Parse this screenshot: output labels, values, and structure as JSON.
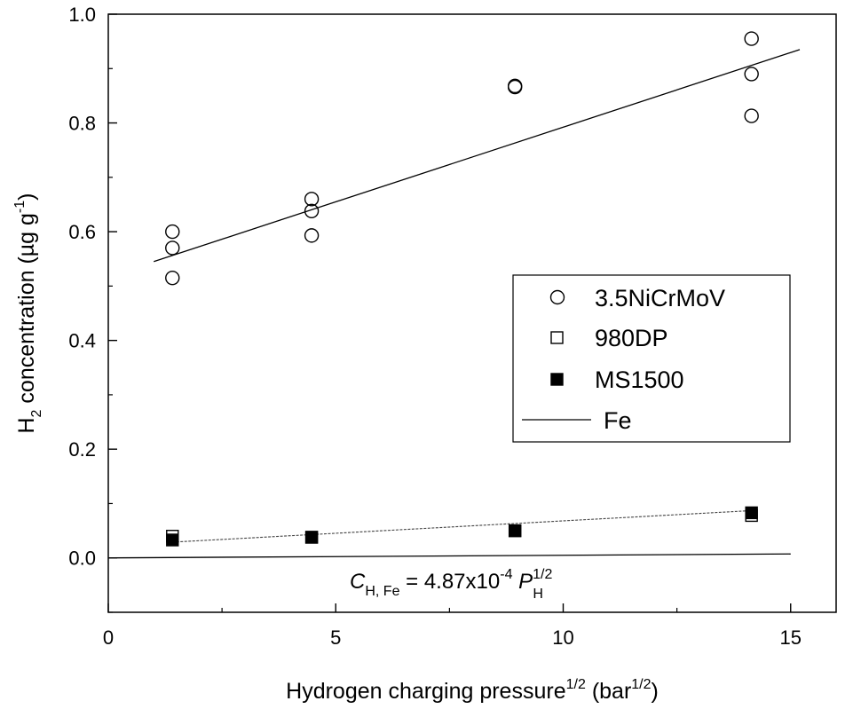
{
  "chart_data": {
    "type": "scatter",
    "title": "",
    "xlabel": {
      "main": "Hydrogen charging pressure",
      "main_sup": "1/2",
      "unit_prefix": "(bar",
      "unit_sup": "1/2",
      "unit_suffix": ")"
    },
    "ylabel": {
      "h": "H",
      "sub": "2",
      "main": " concentration (µg g",
      "sup": "-1",
      "suffix": ")"
    },
    "xlim": [
      0,
      16
    ],
    "ylim": [
      -0.1,
      1.0
    ],
    "x_ticks": [
      0,
      5,
      10,
      15
    ],
    "x_tick_labels": [
      "0",
      "5",
      "10",
      "15"
    ],
    "y_ticks": [
      0.0,
      0.2,
      0.4,
      0.6,
      0.8,
      1.0
    ],
    "y_tick_labels": [
      "0.0",
      "0.2",
      "0.4",
      "0.6",
      "0.8",
      "1.0"
    ],
    "grid": false,
    "legend_position": "center-right",
    "series": [
      {
        "name": "3.5NiCrMoV",
        "marker": "open-circle",
        "points": [
          [
            1.41,
            0.6
          ],
          [
            1.41,
            0.57
          ],
          [
            1.41,
            0.515
          ],
          [
            4.47,
            0.66
          ],
          [
            4.47,
            0.638
          ],
          [
            4.47,
            0.593
          ],
          [
            8.94,
            0.868
          ],
          [
            8.94,
            0.866
          ],
          [
            14.14,
            0.955
          ],
          [
            14.14,
            0.89
          ],
          [
            14.14,
            0.813
          ]
        ],
        "fit": [
          [
            1.0,
            0.545
          ],
          [
            15.2,
            0.935
          ]
        ]
      },
      {
        "name": "980DP",
        "marker": "open-square",
        "points": [
          [
            1.41,
            0.04
          ],
          [
            4.47,
            0.038
          ],
          [
            8.94,
            0.05
          ],
          [
            14.14,
            0.078
          ]
        ]
      },
      {
        "name": "MS1500",
        "marker": "filled-square",
        "points": [
          [
            1.41,
            0.033
          ],
          [
            4.47,
            0.038
          ],
          [
            8.94,
            0.05
          ],
          [
            14.14,
            0.083
          ]
        ],
        "fit": [
          [
            1.41,
            0.029
          ],
          [
            14.14,
            0.087
          ]
        ]
      },
      {
        "name": "Fe",
        "marker": "line",
        "fit": [
          [
            0.0,
            0.0
          ],
          [
            15.0,
            0.0073
          ]
        ]
      }
    ],
    "annotation": {
      "c": "C",
      "c_sub": "H, Fe",
      "middle": " = 4.87x10",
      "exp": "-4",
      "p": " P",
      "p_sup": "1/2",
      "p_sub": "H"
    }
  }
}
